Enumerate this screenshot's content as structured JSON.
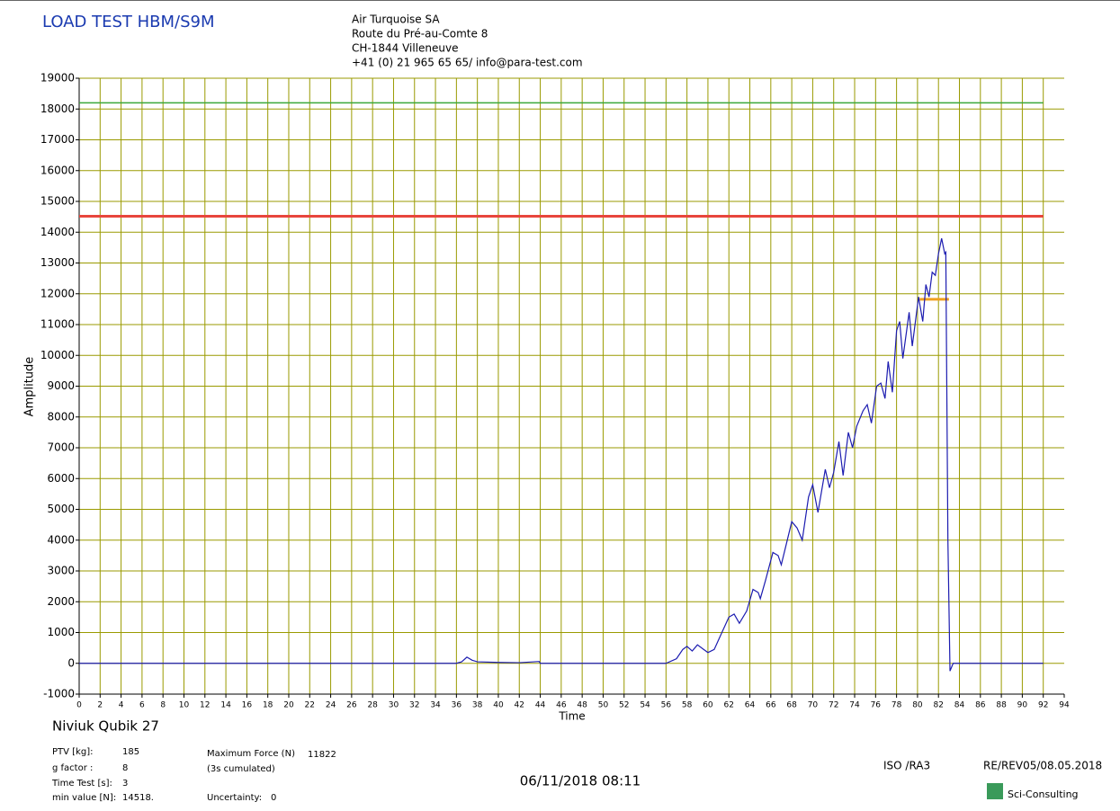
{
  "header": {
    "title": "LOAD TEST HBM/S9M",
    "address": [
      "Air Turquoise SA",
      "Route du Pré-au-Comte 8",
      "CH-1844 Villeneuve",
      "+41 (0) 21 965 65 65/ info@para-test.com"
    ]
  },
  "chart_data": {
    "type": "line",
    "xlabel": "Time",
    "ylabel": "Amplitude",
    "grid": true,
    "xlim": [
      0,
      94
    ],
    "ylim": [
      -1000,
      19000
    ],
    "xticks": [
      0,
      2,
      4,
      6,
      8,
      10,
      12,
      14,
      16,
      18,
      20,
      22,
      24,
      26,
      28,
      30,
      32,
      34,
      36,
      38,
      40,
      42,
      44,
      46,
      48,
      50,
      52,
      54,
      56,
      58,
      60,
      62,
      64,
      66,
      68,
      70,
      72,
      74,
      76,
      78,
      80,
      82,
      84,
      86,
      88,
      90,
      92,
      94
    ],
    "yticks": [
      -1000,
      0,
      1000,
      2000,
      3000,
      4000,
      5000,
      6000,
      7000,
      8000,
      9000,
      10000,
      11000,
      12000,
      13000,
      14000,
      15000,
      16000,
      17000,
      18000,
      19000
    ],
    "x": [
      0,
      36,
      36.5,
      37,
      37.5,
      38,
      40,
      42,
      43.9,
      44,
      55,
      56,
      57,
      57.6,
      58,
      58.5,
      59,
      59.6,
      60,
      60.6,
      61.2,
      62,
      62.5,
      63,
      63.7,
      64.3,
      64.8,
      65,
      65.5,
      66.2,
      66.7,
      67,
      67.5,
      68,
      68.5,
      69,
      69.6,
      70,
      70.5,
      71.2,
      71.6,
      72,
      72.5,
      72.9,
      73.4,
      73.8,
      74.2,
      74.8,
      75.2,
      75.6,
      76.1,
      76.5,
      76.9,
      77.2,
      77.6,
      78,
      78.3,
      78.6,
      79.2,
      79.5,
      80.1,
      80.5,
      80.8,
      81.1,
      81.4,
      81.7,
      82,
      82.3,
      82.6,
      82.7,
      82.9,
      83.1,
      83.4,
      92
    ],
    "series": [
      {
        "color": "#1c1cb0",
        "values": [
          0,
          0,
          50,
          200,
          100,
          50,
          30,
          20,
          60,
          0,
          0,
          0,
          150,
          450,
          550,
          400,
          600,
          450,
          350,
          450,
          900,
          1500,
          1600,
          1300,
          1700,
          2400,
          2300,
          2100,
          2700,
          3600,
          3500,
          3200,
          3900,
          4600,
          4400,
          4000,
          5400,
          5800,
          4900,
          6300,
          5700,
          6200,
          7200,
          6100,
          7500,
          7000,
          7700,
          8200,
          8400,
          7800,
          9000,
          9100,
          8600,
          9800,
          8800,
          10800,
          11100,
          9900,
          11400,
          10300,
          11900,
          11100,
          12300,
          11900,
          12700,
          12600,
          13300,
          13800,
          13300,
          13350,
          4000,
          -250,
          0,
          0
        ]
      }
    ],
    "reference_lines": [
      {
        "value": 18200,
        "color": "#3aa83a",
        "xlim": [
          0,
          92
        ]
      },
      {
        "value": 14518,
        "color": "#e8463c",
        "xlim": [
          0,
          92
        ]
      },
      {
        "value": 11822,
        "color": "#f0a020",
        "xlim": [
          80.2,
          83
        ]
      }
    ]
  },
  "footer": {
    "product": "Niviuk Qubik 27",
    "params": [
      [
        "PTV [kg]:",
        "185"
      ],
      [
        "g factor :",
        "8"
      ],
      [
        "Time Test [s]:",
        "3"
      ],
      [
        "min value [N]:",
        "14518."
      ]
    ],
    "max_force_label": "Maximum Force (N)",
    "max_force": "11822",
    "cumulated": "(3s cumulated)",
    "uncertainty_label": "Uncertainty:",
    "uncertainty": "0",
    "datetime": "06/11/2018 08:11",
    "standard": "ISO /RA3",
    "revision": "RE/REV05/08.05.2018",
    "logo": "Sci-Consulting"
  }
}
